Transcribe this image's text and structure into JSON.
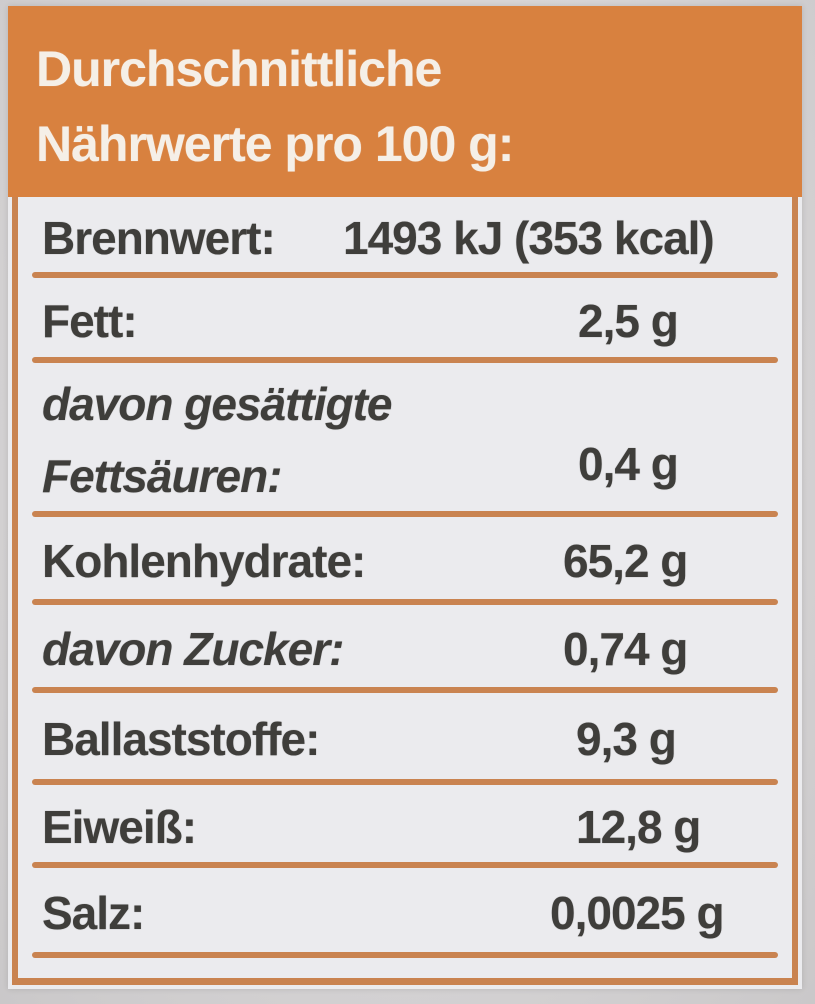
{
  "header": {
    "line1": "Durchschnittliche",
    "line2": "Nährwerte pro 100 g:"
  },
  "rows": [
    {
      "label": "Brennwert:",
      "value": "1493 kJ (353 kcal)"
    },
    {
      "label": "Fett:",
      "value": "2,5 g"
    },
    {
      "label": "davon gesättigte Fettsäuren:",
      "value": "0,4 g"
    },
    {
      "label": "Kohlenhydrate:",
      "value": "65,2 g"
    },
    {
      "label": "davon Zucker:",
      "value": "0,74 g"
    },
    {
      "label": "Ballaststoffe:",
      "value": "9,3 g"
    },
    {
      "label": "Eiweiß:",
      "value": "12,8 g"
    },
    {
      "label": "Salz:",
      "value": "0,0025 g"
    }
  ],
  "colors": {
    "header_bg": "#d8813f",
    "line": "#c98350",
    "text": "#3f3e3b",
    "header_text": "#f5efe7",
    "label_bg": "#ebebee",
    "photo_bg": "#d7d5d6"
  }
}
